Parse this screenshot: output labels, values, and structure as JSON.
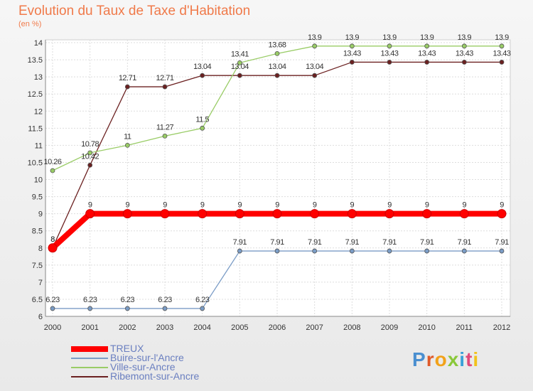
{
  "header": {
    "title": "Evolution du Taux de Taxe d'Habitation",
    "subtitle": "(en %)"
  },
  "logo": {
    "text": "Proxiti"
  },
  "chart_data": {
    "type": "line",
    "title": "Evolution du Taux de Taxe d'Habitation",
    "subtitle": "(en %)",
    "xlabel": "",
    "ylabel": "",
    "x": [
      2000,
      2001,
      2002,
      2003,
      2004,
      2005,
      2006,
      2007,
      2008,
      2009,
      2010,
      2011,
      2012
    ],
    "ylim": [
      6,
      14
    ],
    "yticks": [
      6,
      6.5,
      7,
      7.5,
      8,
      8.5,
      9,
      9.5,
      10,
      10.5,
      11,
      11.5,
      12,
      12.5,
      13,
      13.5,
      14
    ],
    "grid": true,
    "legend_position": "bottom-left",
    "series": [
      {
        "name": "TREUX",
        "color": "#ff0000",
        "values": [
          8,
          9,
          9,
          9,
          9,
          9,
          9,
          9,
          9,
          9,
          9,
          9,
          9
        ],
        "labels": [
          "8",
          "9",
          "9",
          "9",
          "9",
          "9",
          "9",
          "9",
          "9",
          "9",
          "9",
          "9",
          "9"
        ]
      },
      {
        "name": "Buire-sur-l'Ancre",
        "color": "#7a9cc6",
        "values": [
          6.23,
          6.23,
          6.23,
          6.23,
          6.23,
          7.91,
          7.91,
          7.91,
          7.91,
          7.91,
          7.91,
          7.91,
          7.91
        ],
        "labels": [
          "6.23",
          "6.23",
          "6.23",
          "6.23",
          "6.23",
          "7.91",
          "7.91",
          "7.91",
          "7.91",
          "7.91",
          "7.91",
          "7.91",
          "7.91"
        ]
      },
      {
        "name": "Ville-sur-Ancre",
        "color": "#99cc66",
        "values": [
          10.26,
          10.78,
          11,
          11.27,
          11.5,
          13.41,
          13.68,
          13.9,
          13.9,
          13.9,
          13.9,
          13.9,
          13.9
        ],
        "labels": [
          "10.26",
          "10.78",
          "11",
          "11.27",
          "11.5",
          "13.41",
          "13.68",
          "13.9",
          "13.9",
          "13.9",
          "13.9",
          "13.9",
          "13.9"
        ]
      },
      {
        "name": "Ribemont-sur-Ancre",
        "color": "#6b2020",
        "values": [
          8,
          10.42,
          12.71,
          12.71,
          13.04,
          13.04,
          13.04,
          13.04,
          13.43,
          13.43,
          13.43,
          13.43,
          13.43
        ],
        "labels": [
          "8",
          "10.42",
          "12.71",
          "12.71",
          "13.04",
          "13.04",
          "13.04",
          "13.04",
          "13.43",
          "13.43",
          "13.43",
          "13.43",
          "13.43"
        ]
      }
    ]
  }
}
